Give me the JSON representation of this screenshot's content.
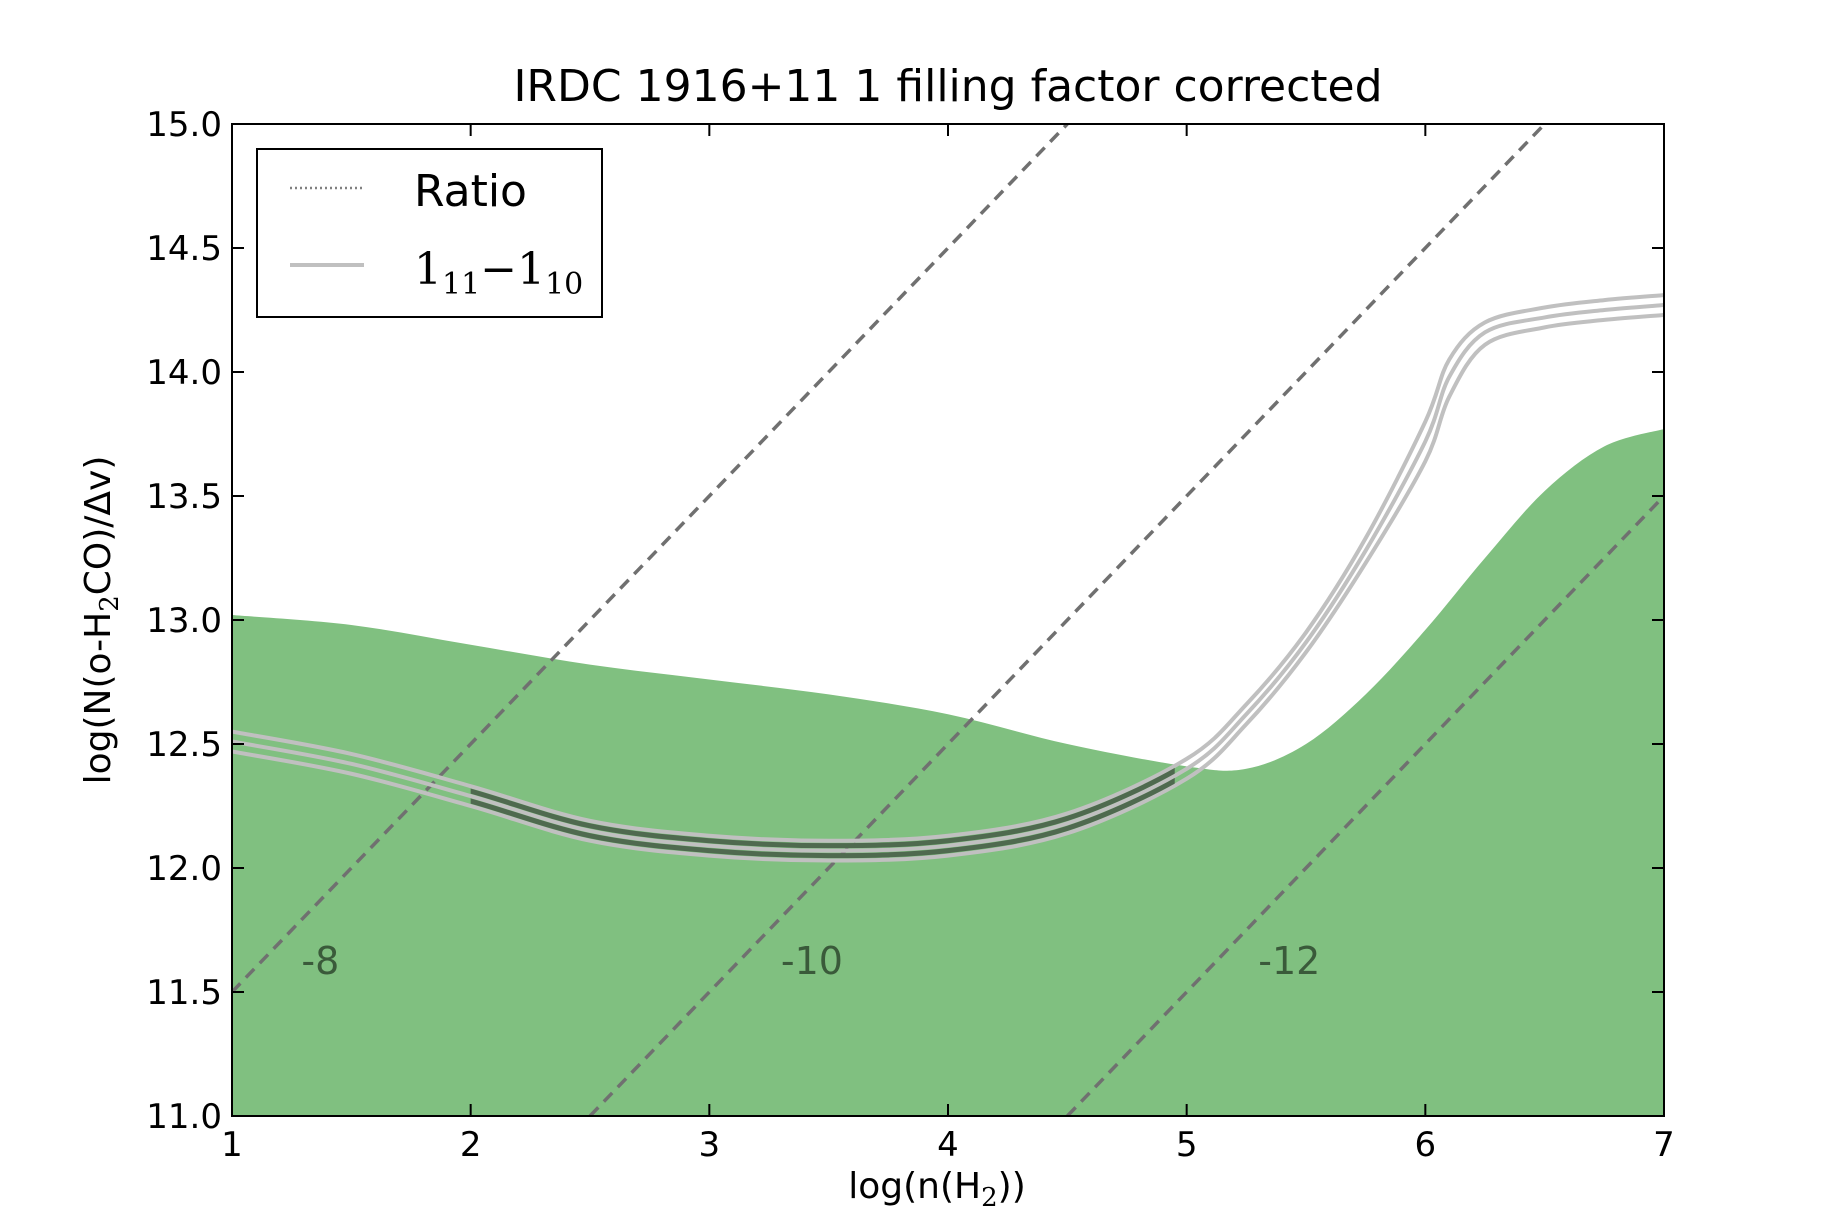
{
  "chart_data": {
    "type": "line",
    "title": "IRDC 1916+11 1 filling factor corrected",
    "xlabel": {
      "prefix": "log(n(H",
      "sub": "2",
      "suffix": "))"
    },
    "ylabel": {
      "prefix": "log(N(o-H",
      "sub": "2",
      "suffix": "CO)/Δv)"
    },
    "xlim": [
      1,
      7
    ],
    "ylim": [
      11.0,
      15.0
    ],
    "x_ticks": [
      1,
      2,
      3,
      4,
      5,
      6,
      7
    ],
    "x_tick_labels": [
      "1",
      "2",
      "3",
      "4",
      "5",
      "6",
      "7"
    ],
    "y_ticks": [
      11.0,
      11.5,
      12.0,
      12.5,
      13.0,
      13.5,
      14.0,
      14.5,
      15.0
    ],
    "y_tick_labels": [
      "11.0",
      "11.5",
      "12.0",
      "12.5",
      "13.0",
      "13.5",
      "14.0",
      "14.5",
      "15.0"
    ],
    "grid": false,
    "legend": {
      "placement": "top-left",
      "entries": [
        {
          "label": "Ratio",
          "style": "dotted",
          "color": "#808080"
        },
        {
          "label_main": "1",
          "label_sub1": "11",
          "label_dash": "−",
          "label_main2": "1",
          "label_sub2": "10",
          "style": "solid",
          "color": "#c0c0c0"
        }
      ]
    },
    "fill_region": {
      "color": "#80c080",
      "upper_boundary": {
        "x": [
          1.0,
          1.5,
          2.0,
          2.5,
          3.0,
          3.5,
          4.0,
          4.5,
          5.0,
          5.25,
          5.5,
          5.75,
          6.0,
          6.25,
          6.5,
          6.75,
          7.0
        ],
        "y": [
          13.02,
          12.98,
          12.9,
          12.82,
          12.76,
          12.7,
          12.62,
          12.5,
          12.41,
          12.4,
          12.5,
          12.7,
          12.96,
          13.25,
          13.52,
          13.7,
          13.77
        ]
      }
    },
    "band_series": [
      {
        "x": [
          1.0,
          1.5,
          2.0,
          2.5,
          3.0,
          3.5,
          4.0,
          4.5,
          5.0,
          5.25,
          5.5,
          5.75,
          6.0,
          6.1,
          6.25,
          6.5,
          6.75,
          7.0
        ],
        "y": [
          12.55,
          12.46,
          12.33,
          12.19,
          12.13,
          12.11,
          12.13,
          12.22,
          12.44,
          12.66,
          12.95,
          13.33,
          13.8,
          14.05,
          14.2,
          14.26,
          14.29,
          14.31
        ]
      },
      {
        "x": [
          1.0,
          1.5,
          2.0,
          2.5,
          3.0,
          3.5,
          4.0,
          4.5,
          5.0,
          5.25,
          5.5,
          5.75,
          6.0,
          6.1,
          6.25,
          6.5,
          6.75,
          7.0
        ],
        "y": [
          12.51,
          12.42,
          12.29,
          12.15,
          12.09,
          12.07,
          12.09,
          12.18,
          12.4,
          12.62,
          12.91,
          13.28,
          13.72,
          13.98,
          14.16,
          14.22,
          14.25,
          14.27
        ]
      },
      {
        "x": [
          1.0,
          1.5,
          2.0,
          2.5,
          3.0,
          3.5,
          4.0,
          4.5,
          5.0,
          5.25,
          5.5,
          5.75,
          6.0,
          6.1,
          6.25,
          6.5,
          6.75,
          7.0
        ],
        "y": [
          12.47,
          12.38,
          12.25,
          12.11,
          12.05,
          12.03,
          12.05,
          12.14,
          12.36,
          12.58,
          12.87,
          13.23,
          13.64,
          13.9,
          14.11,
          14.18,
          14.21,
          14.23
        ]
      }
    ],
    "band_color": "#c0c0c0",
    "band_highlight": {
      "x_range": [
        2.0,
        4.95
      ],
      "color": "#4f6a4f"
    },
    "dashed_lines": [
      {
        "label": "-8",
        "x": [
          1.0,
          4.5
        ],
        "y": [
          11.5,
          15.0
        ],
        "label_x": 1.37,
        "label_y": 11.62
      },
      {
        "label": "-10",
        "x": [
          2.5,
          6.5
        ],
        "y": [
          11.0,
          15.0
        ],
        "label_x": 3.43,
        "label_y": 11.62
      },
      {
        "label": "-12",
        "x": [
          4.5,
          7.0
        ],
        "y": [
          11.0,
          13.5
        ],
        "label_x": 5.43,
        "label_y": 11.62
      }
    ],
    "dashed_color": "#707070"
  }
}
